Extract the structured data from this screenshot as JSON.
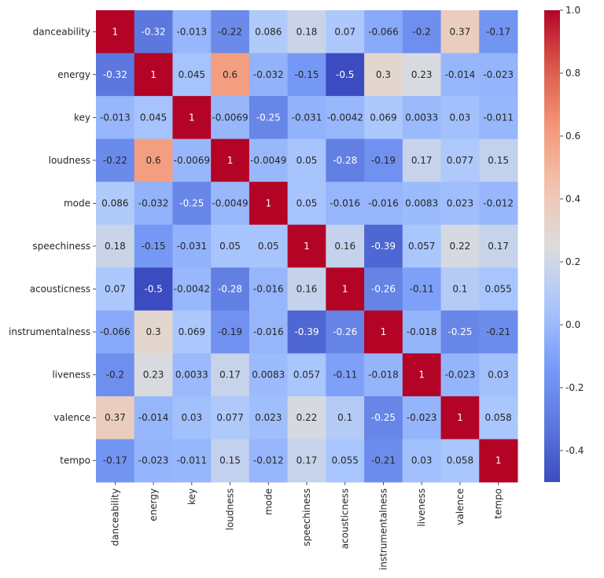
{
  "chart_data": {
    "type": "heatmap",
    "title": "",
    "xlabel": "",
    "ylabel": "",
    "colormap": "coolwarm",
    "color_range": [
      -0.5,
      1.0
    ],
    "colorbar_ticks": [
      "-0.4",
      "-0.2",
      "0.0",
      "0.2",
      "0.4",
      "0.6",
      "0.8",
      "1.0"
    ],
    "colorbar_tick_values": [
      -0.4,
      -0.2,
      0.0,
      0.2,
      0.4,
      0.6,
      0.8,
      1.0
    ],
    "labels": [
      "danceability",
      "energy",
      "key",
      "loudness",
      "mode",
      "speechiness",
      "acousticness",
      "instrumentalness",
      "liveness",
      "valence",
      "tempo"
    ],
    "values": [
      [
        "1",
        "-0.32",
        "-0.013",
        "-0.22",
        "0.086",
        "0.18",
        "0.07",
        "-0.066",
        "-0.2",
        "0.37",
        "-0.17"
      ],
      [
        "-0.32",
        "1",
        "0.045",
        "0.6",
        "-0.032",
        "-0.15",
        "-0.5",
        "0.3",
        "0.23",
        "-0.014",
        "-0.023"
      ],
      [
        "-0.013",
        "0.045",
        "1",
        "-0.0069",
        "-0.25",
        "-0.031",
        "-0.0042",
        "0.069",
        "0.0033",
        "0.03",
        "-0.011"
      ],
      [
        "-0.22",
        "0.6",
        "-0.0069",
        "1",
        "-0.0049",
        "0.05",
        "-0.28",
        "-0.19",
        "0.17",
        "0.077",
        "0.15"
      ],
      [
        "0.086",
        "-0.032",
        "-0.25",
        "-0.0049",
        "1",
        "0.05",
        "-0.016",
        "-0.016",
        "0.0083",
        "0.023",
        "-0.012"
      ],
      [
        "0.18",
        "-0.15",
        "-0.031",
        "0.05",
        "0.05",
        "1",
        "0.16",
        "-0.39",
        "0.057",
        "0.22",
        "0.17"
      ],
      [
        "0.07",
        "-0.5",
        "-0.0042",
        "-0.28",
        "-0.016",
        "0.16",
        "1",
        "-0.26",
        "-0.11",
        "0.1",
        "0.055"
      ],
      [
        "-0.066",
        "0.3",
        "0.069",
        "-0.19",
        "-0.016",
        "-0.39",
        "-0.26",
        "1",
        "-0.018",
        "-0.25",
        "-0.21"
      ],
      [
        "-0.2",
        "0.23",
        "0.0033",
        "0.17",
        "0.0083",
        "0.057",
        "-0.11",
        "-0.018",
        "1",
        "-0.023",
        "0.03"
      ],
      [
        "0.37",
        "-0.014",
        "0.03",
        "0.077",
        "0.023",
        "0.22",
        "0.1",
        "-0.25",
        "-0.023",
        "1",
        "0.058"
      ],
      [
        "-0.17",
        "-0.023",
        "-0.011",
        "0.15",
        "-0.012",
        "0.17",
        "0.055",
        "-0.21",
        "0.03",
        "0.058",
        "1"
      ]
    ]
  }
}
